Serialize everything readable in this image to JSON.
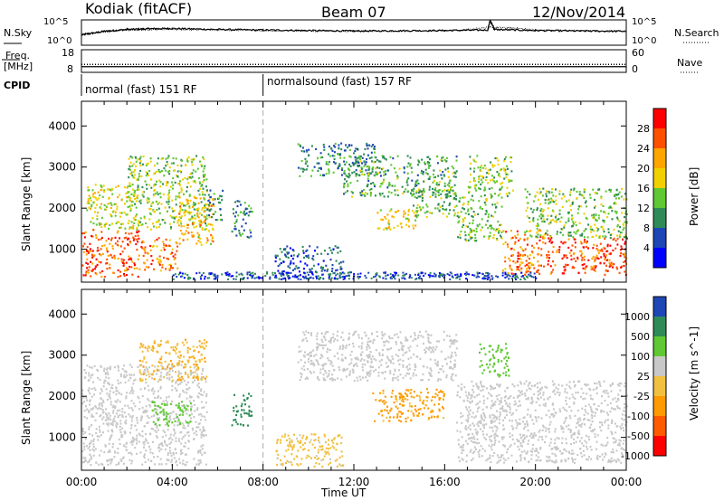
{
  "header": {
    "station": "Kodiak (fitACF)",
    "beam": "Beam 07",
    "date": "12/Nov/2014"
  },
  "side_labels": {
    "nsky": "N.Sky",
    "nsearch": "N.Search",
    "freq_line1": "Freq.",
    "freq_line2": "[MHz]",
    "nave": "Nave",
    "cpid": "CPID"
  },
  "cpid_segments": [
    {
      "start_hour": 0,
      "label": "normal (fast) 151 RF"
    },
    {
      "start_hour": 8,
      "label": "normalsound (fast) 157 RF"
    }
  ],
  "colors": {
    "power": [
      "#0000ff",
      "#1e46b4",
      "#2e8b57",
      "#5fc832",
      "#f0d000",
      "#ffa500",
      "#ff5000",
      "#ff0000"
    ],
    "velocity": [
      "#ff0000",
      "#ff5a00",
      "#ff9a00",
      "#f2c040",
      "#c8c8c8",
      "#5fc832",
      "#2e8b57",
      "#1e46b4"
    ]
  },
  "chart_data": [
    {
      "type": "line",
      "name": "noise-panel",
      "ylabel": "N.Sky",
      "y_ticks": [
        "10^5",
        "10^0"
      ],
      "y_ticks_right": [
        "10^5",
        "10^0"
      ],
      "series": [
        {
          "name": "N.Sky",
          "x": [
            0,
            1,
            2,
            3,
            4,
            6,
            8,
            10,
            12,
            14,
            16,
            17.9,
            18,
            18.2,
            20,
            22,
            24
          ],
          "y": [
            0.4,
            0.55,
            0.62,
            0.65,
            0.66,
            0.62,
            0.6,
            0.58,
            0.56,
            0.57,
            0.58,
            0.6,
            0.98,
            0.62,
            0.58,
            0.56,
            0.55
          ]
        },
        {
          "name": "N.Search",
          "x": [
            0,
            2,
            4,
            8,
            12,
            16,
            18,
            19,
            20,
            24
          ],
          "y": [
            0.45,
            0.6,
            0.63,
            0.58,
            0.55,
            0.57,
            0.7,
            0.68,
            0.6,
            0.56
          ]
        }
      ]
    },
    {
      "type": "line",
      "name": "frequency-panel",
      "y_ticks": [
        "18",
        "8"
      ],
      "y_ticks_right": [
        "60",
        "0"
      ],
      "series": [
        {
          "name": "Freq.",
          "x": [
            0,
            24
          ],
          "y": [
            11.5,
            11.5
          ]
        },
        {
          "name": "Nave",
          "x": [
            0,
            24
          ],
          "y": [
            10.5,
            10.5
          ]
        }
      ]
    },
    {
      "type": "heatmap",
      "name": "power",
      "ylabel": "Slant Range [km]",
      "colorbar_label": "Power [dB]",
      "colorbar_ticks": [
        4,
        8,
        12,
        16,
        20,
        24,
        28
      ],
      "y_ticks": [
        1000,
        2000,
        3000,
        4000
      ],
      "ylim": [
        200,
        4600
      ],
      "xlim": [
        0,
        24
      ],
      "blobs": [
        {
          "t0": 0.0,
          "t1": 2.5,
          "r0": 350,
          "r1": 1500,
          "value": 26
        },
        {
          "t0": 0.2,
          "t1": 2.5,
          "r0": 1500,
          "r1": 2600,
          "value": 17
        },
        {
          "t0": 2.5,
          "t1": 4.2,
          "r0": 500,
          "r1": 1300,
          "value": 24
        },
        {
          "t0": 2.0,
          "t1": 5.5,
          "r0": 1500,
          "r1": 3300,
          "value": 15
        },
        {
          "t0": 4.2,
          "t1": 5.8,
          "r0": 1100,
          "r1": 2300,
          "value": 20
        },
        {
          "t0": 5.5,
          "t1": 6.2,
          "r0": 1700,
          "r1": 2500,
          "value": 10
        },
        {
          "t0": 6.6,
          "t1": 7.5,
          "r0": 1300,
          "r1": 2200,
          "value": 10
        },
        {
          "t0": 8.5,
          "t1": 11.5,
          "r0": 300,
          "r1": 1100,
          "value": 7
        },
        {
          "t0": 9.5,
          "t1": 13.0,
          "r0": 2800,
          "r1": 3600,
          "value": 9
        },
        {
          "t0": 11.5,
          "t1": 16.5,
          "r0": 2300,
          "r1": 3300,
          "value": 12
        },
        {
          "t0": 13.0,
          "t1": 14.8,
          "r0": 1500,
          "r1": 2000,
          "value": 19
        },
        {
          "t0": 14.5,
          "t1": 16.5,
          "r0": 1800,
          "r1": 2500,
          "value": 13
        },
        {
          "t0": 16.5,
          "t1": 18.5,
          "r0": 1200,
          "r1": 2300,
          "value": 14
        },
        {
          "t0": 17.0,
          "t1": 19.0,
          "r0": 2300,
          "r1": 3300,
          "value": 15
        },
        {
          "t0": 18.5,
          "t1": 20.5,
          "r0": 400,
          "r1": 1500,
          "value": 24
        },
        {
          "t0": 20.5,
          "t1": 24.0,
          "r0": 400,
          "r1": 1300,
          "value": 27
        },
        {
          "t0": 19.5,
          "t1": 24.0,
          "r0": 1300,
          "r1": 2500,
          "value": 14
        }
      ]
    },
    {
      "type": "heatmap",
      "name": "velocity",
      "ylabel": "Slant Range [km]",
      "colorbar_label": "Velocity [m s^-1]",
      "colorbar_ticks": [
        1000,
        500,
        100,
        25,
        -25,
        -100,
        -500,
        -1000
      ],
      "y_ticks": [
        1000,
        2000,
        3000,
        4000
      ],
      "ylim": [
        200,
        4600
      ],
      "xlim": [
        0,
        24
      ],
      "x_ticks": [
        "00:00",
        "04:00",
        "08:00",
        "12:00",
        "16:00",
        "20:00",
        "00:00"
      ],
      "xlabel": "Time UT",
      "blobs": [
        {
          "t0": 0.0,
          "t1": 5.5,
          "r0": 350,
          "r1": 2800,
          "value": 0
        },
        {
          "t0": 3.0,
          "t1": 4.8,
          "r0": 1300,
          "r1": 1900,
          "value": 60
        },
        {
          "t0": 2.5,
          "t1": 5.5,
          "r0": 2400,
          "r1": 3400,
          "value": -80
        },
        {
          "t0": 6.6,
          "t1": 7.5,
          "r0": 1300,
          "r1": 2100,
          "value": 300
        },
        {
          "t0": 8.5,
          "t1": 11.5,
          "r0": 300,
          "r1": 1100,
          "value": -40
        },
        {
          "t0": 9.5,
          "t1": 16.5,
          "r0": 2400,
          "r1": 3600,
          "value": 0
        },
        {
          "t0": 12.8,
          "t1": 16.0,
          "r0": 1400,
          "r1": 2200,
          "value": -150
        },
        {
          "t0": 16.5,
          "t1": 24.0,
          "r0": 400,
          "r1": 2400,
          "value": 0
        },
        {
          "t0": 17.5,
          "t1": 18.8,
          "r0": 2500,
          "r1": 3300,
          "value": 60
        }
      ]
    }
  ]
}
